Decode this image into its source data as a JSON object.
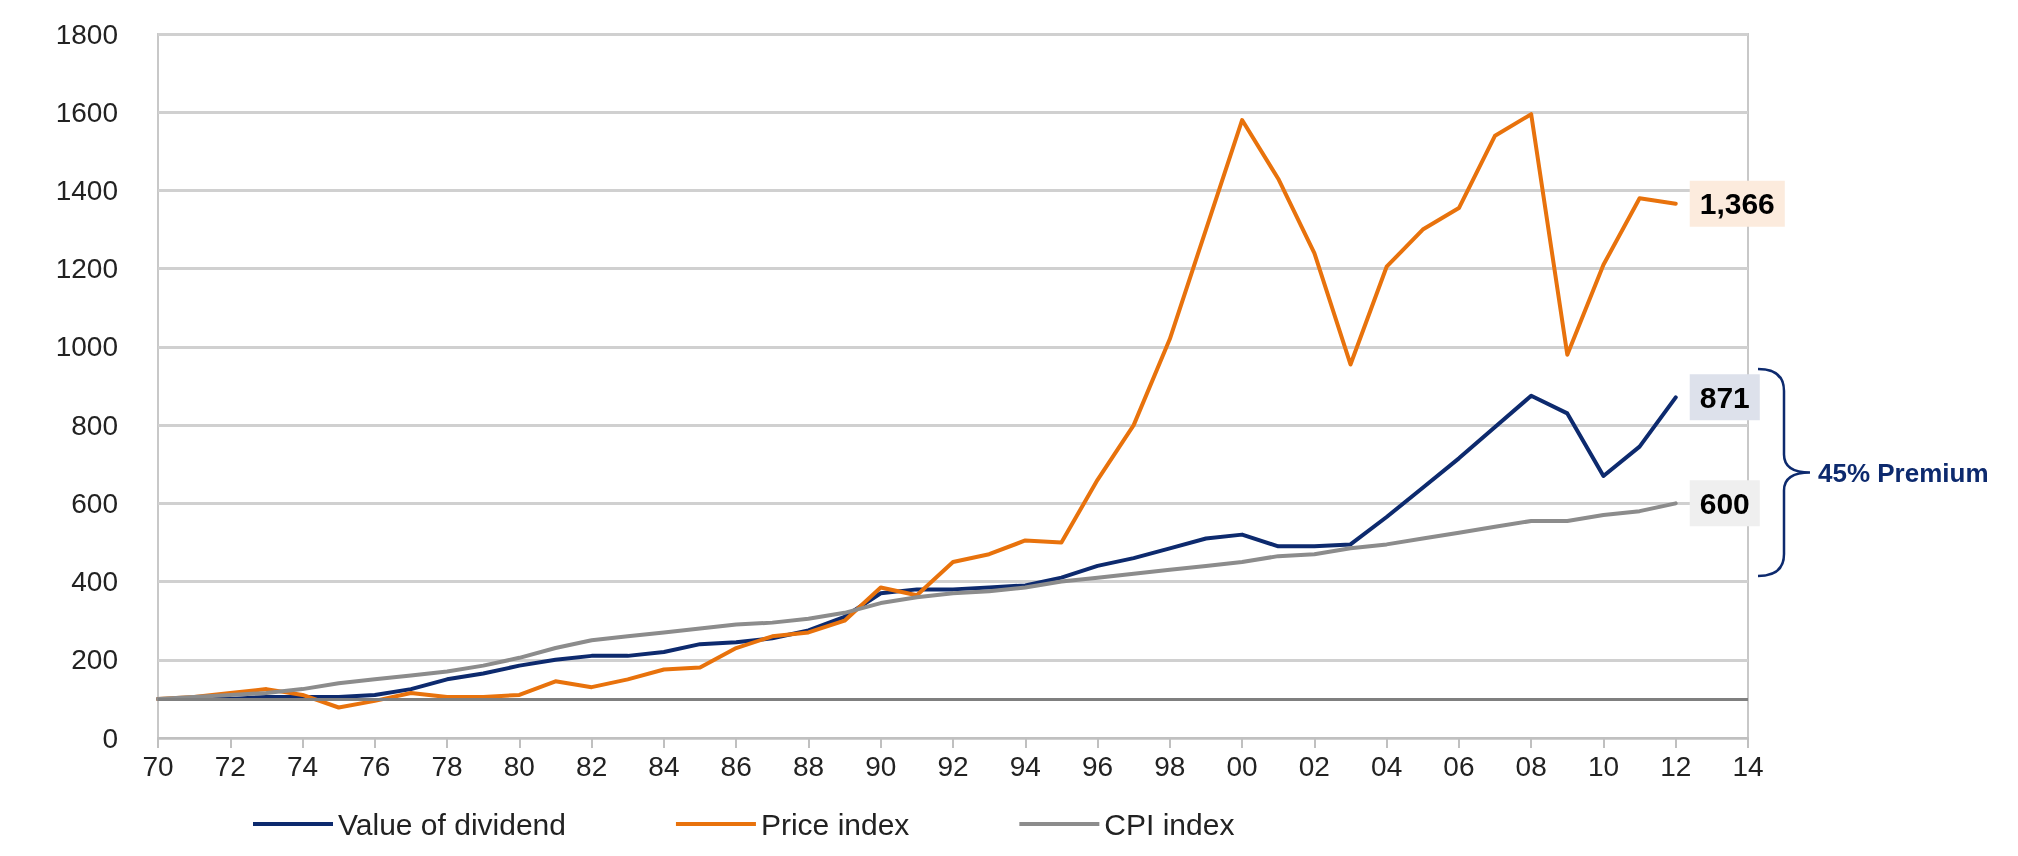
{
  "chart_data": {
    "type": "line",
    "x": [
      1970,
      1971,
      1972,
      1973,
      1974,
      1975,
      1976,
      1977,
      1978,
      1979,
      1980,
      1981,
      1982,
      1983,
      1984,
      1985,
      1986,
      1987,
      1988,
      1989,
      1990,
      1991,
      1992,
      1993,
      1994,
      1995,
      1996,
      1997,
      1998,
      1999,
      2000,
      2001,
      2002,
      2003,
      2004,
      2005,
      2006,
      2007,
      2008,
      2009,
      2010,
      2011,
      2012
    ],
    "series": [
      {
        "name": "Value of dividend",
        "color": "#0d2a6e",
        "values": [
          100,
          100,
          100,
          105,
          105,
          105,
          110,
          125,
          150,
          165,
          185,
          200,
          210,
          210,
          220,
          240,
          245,
          255,
          275,
          310,
          370,
          380,
          380,
          385,
          390,
          410,
          440,
          460,
          485,
          510,
          520,
          490,
          490,
          495,
          565,
          640,
          715,
          795,
          875,
          830,
          670,
          745,
          871
        ],
        "value_labels": [
          null,
          null,
          null,
          null,
          null,
          null,
          null,
          null,
          null,
          null,
          null,
          null,
          null,
          null,
          null,
          null,
          null,
          null,
          null,
          null,
          null,
          null,
          null,
          null,
          null,
          null,
          null,
          null,
          null,
          null,
          null,
          null,
          null,
          null,
          null,
          null,
          null,
          null,
          null,
          null,
          null,
          null,
          "871"
        ]
      },
      {
        "name": "Price index",
        "color": "#e8720c",
        "values": [
          100,
          105,
          115,
          125,
          110,
          78,
          95,
          115,
          105,
          105,
          110,
          145,
          130,
          150,
          175,
          180,
          230,
          260,
          270,
          300,
          385,
          365,
          450,
          470,
          505,
          500,
          660,
          800,
          1020,
          1300,
          1580,
          1430,
          1240,
          955,
          1205,
          1300,
          1355,
          1540,
          1595,
          980,
          1210,
          1380,
          1366
        ],
        "value_labels": [
          null,
          null,
          null,
          null,
          null,
          null,
          null,
          null,
          null,
          null,
          null,
          null,
          null,
          null,
          null,
          null,
          null,
          null,
          null,
          null,
          null,
          null,
          null,
          null,
          null,
          null,
          null,
          null,
          null,
          null,
          null,
          null,
          null,
          null,
          null,
          null,
          null,
          null,
          null,
          null,
          null,
          null,
          "1,366"
        ]
      },
      {
        "name": "CPI index",
        "color": "#8c8c8c",
        "values": [
          100,
          105,
          110,
          115,
          125,
          140,
          150,
          160,
          170,
          185,
          205,
          230,
          250,
          260,
          270,
          280,
          290,
          295,
          305,
          320,
          345,
          360,
          370,
          375,
          385,
          400,
          410,
          420,
          430,
          440,
          450,
          465,
          470,
          485,
          495,
          510,
          525,
          540,
          555,
          555,
          570,
          580,
          600
        ],
        "value_labels": [
          null,
          null,
          null,
          null,
          null,
          null,
          null,
          null,
          null,
          null,
          null,
          null,
          null,
          null,
          null,
          null,
          null,
          null,
          null,
          null,
          null,
          null,
          null,
          null,
          null,
          null,
          null,
          null,
          null,
          null,
          null,
          null,
          null,
          null,
          null,
          null,
          null,
          null,
          null,
          null,
          null,
          null,
          "600"
        ]
      }
    ],
    "xlim": [
      1970,
      2014
    ],
    "xticks": [
      {
        "value": 1970,
        "label": "70"
      },
      {
        "value": 1972,
        "label": "72"
      },
      {
        "value": 1974,
        "label": "74"
      },
      {
        "value": 1976,
        "label": "76"
      },
      {
        "value": 1978,
        "label": "78"
      },
      {
        "value": 1980,
        "label": "80"
      },
      {
        "value": 1982,
        "label": "82"
      },
      {
        "value": 1984,
        "label": "84"
      },
      {
        "value": 1986,
        "label": "86"
      },
      {
        "value": 1988,
        "label": "88"
      },
      {
        "value": 1990,
        "label": "90"
      },
      {
        "value": 1992,
        "label": "92"
      },
      {
        "value": 1994,
        "label": "94"
      },
      {
        "value": 1996,
        "label": "96"
      },
      {
        "value": 1998,
        "label": "98"
      },
      {
        "value": 2000,
        "label": "00"
      },
      {
        "value": 2002,
        "label": "02"
      },
      {
        "value": 2004,
        "label": "04"
      },
      {
        "value": 2006,
        "label": "06"
      },
      {
        "value": 2008,
        "label": "08"
      },
      {
        "value": 2010,
        "label": "10"
      },
      {
        "value": 2012,
        "label": "12"
      },
      {
        "value": 2014,
        "label": "14"
      }
    ],
    "ylim": [
      0,
      1800
    ],
    "yticks": [
      0,
      200,
      400,
      600,
      800,
      1000,
      1200,
      1400,
      1600,
      1800
    ],
    "ref_lines": [
      {
        "axis": "y",
        "value": 100,
        "color": "#7f7f7f"
      }
    ],
    "annotations": [
      "45% Premium"
    ],
    "grid": "y",
    "legend": "bottom",
    "marker": "none",
    "line_style": "solid"
  }
}
